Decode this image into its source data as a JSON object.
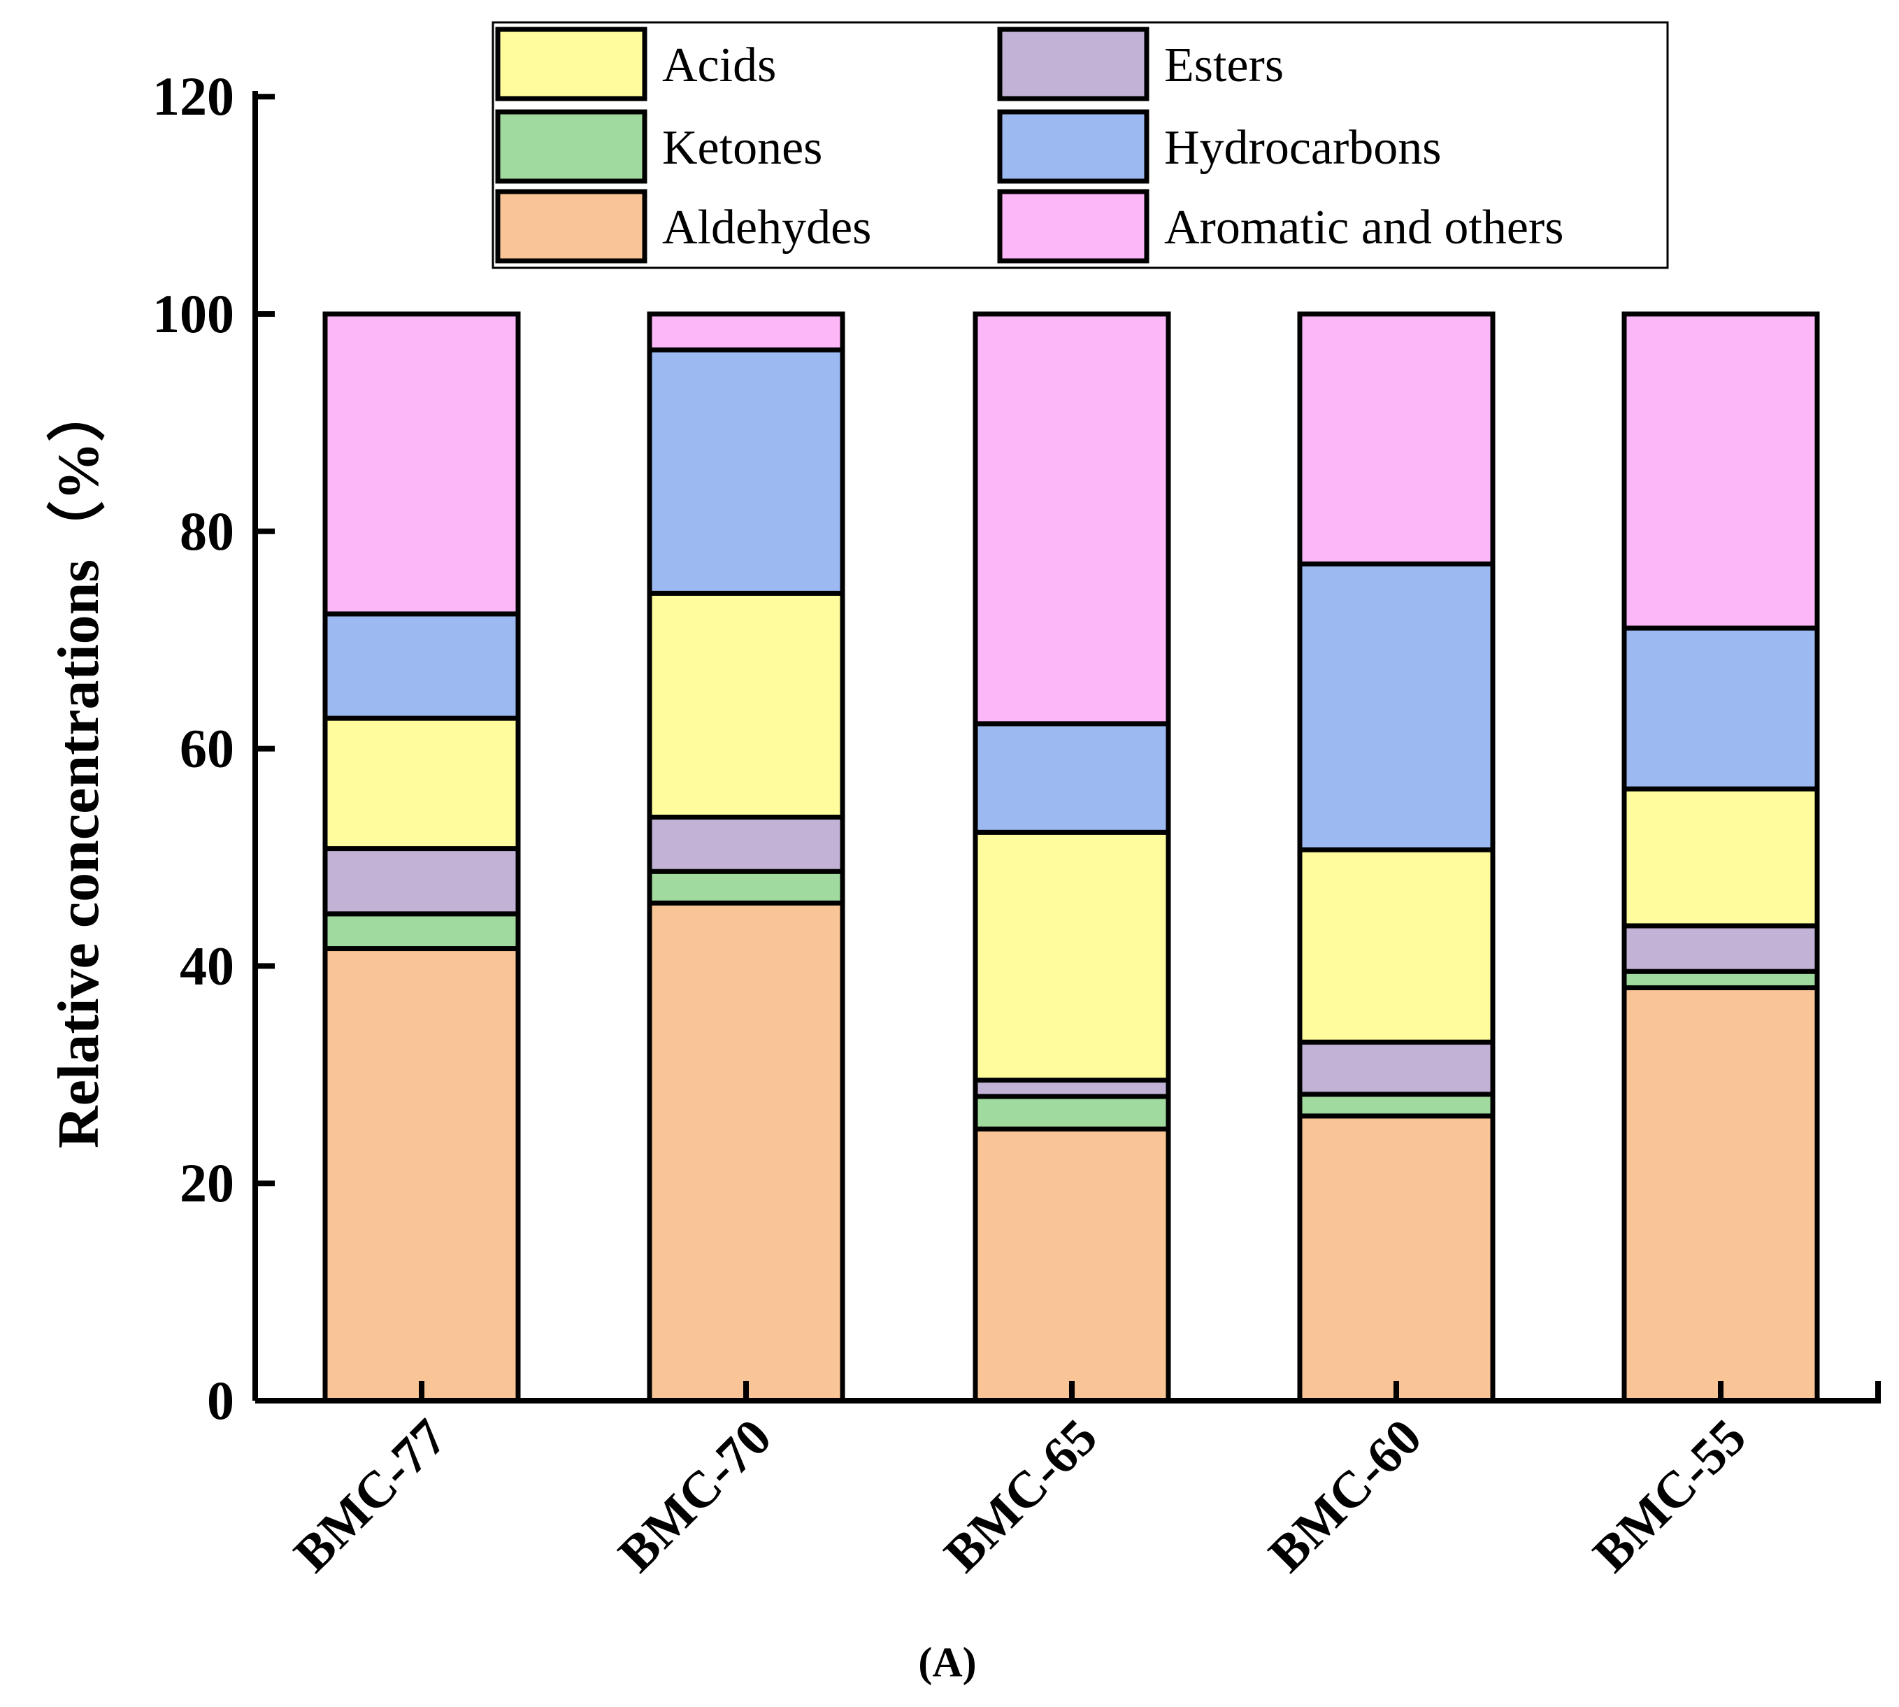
{
  "chart_data": {
    "type": "bar",
    "stacked": true,
    "title": "",
    "xlabel": "",
    "ylabel": "Relative concentrations（%）",
    "ylim": [
      0,
      120
    ],
    "yticks": [
      0,
      20,
      40,
      60,
      80,
      100,
      120
    ],
    "categories": [
      "BMC-77",
      "BMC-70",
      "BMC-65",
      "BMC-60",
      "BMC-55"
    ],
    "series": [
      {
        "name": "Aldehydes",
        "color": "#FAC596",
        "values": [
          41.6,
          45.8,
          25.0,
          26.2,
          38.0
        ]
      },
      {
        "name": "Ketones",
        "color": "#A0DA9E",
        "values": [
          3.2,
          2.9,
          3.0,
          2.0,
          1.5
        ]
      },
      {
        "name": "Esters",
        "color": "#C1B2D6",
        "values": [
          6.0,
          5.0,
          1.5,
          4.8,
          4.2
        ]
      },
      {
        "name": "Acids",
        "color": "#FEFC9C",
        "values": [
          12.0,
          20.6,
          22.8,
          17.7,
          12.6
        ]
      },
      {
        "name": "Hydrocarbons",
        "color": "#9CBAF1",
        "values": [
          9.6,
          22.4,
          10.0,
          26.3,
          14.8
        ]
      },
      {
        "name": "Aromatic and others",
        "color": "#FCB7F9",
        "values": [
          27.6,
          3.3,
          37.7,
          23.0,
          28.9
        ]
      }
    ],
    "legend": {
      "position": "top",
      "order": [
        "Acids",
        "Esters",
        "Ketones",
        "Hydrocarbons",
        "Aldehydes",
        "Aromatic and others"
      ]
    },
    "grid": false
  },
  "caption": "(A)"
}
